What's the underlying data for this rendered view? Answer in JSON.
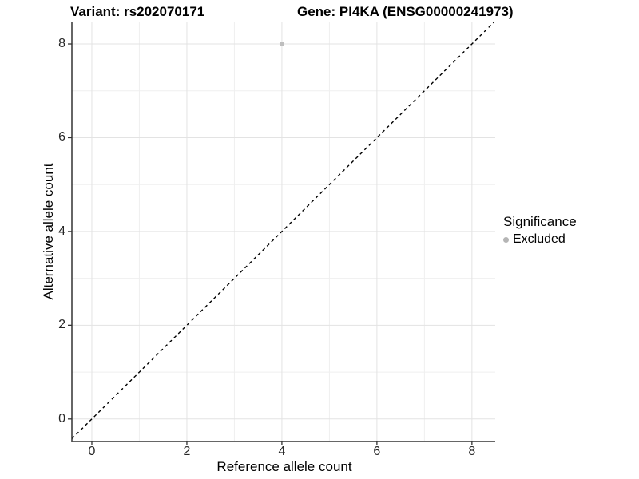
{
  "chart_data": {
    "type": "scatter",
    "titles": {
      "left": "Variant: rs202070171",
      "right": "Gene: PI4KA (ENSG00000241973)"
    },
    "xlabel": "Reference allele count",
    "ylabel": "Alternative allele count",
    "xlim": [
      -0.42,
      8.49
    ],
    "ylim": [
      -0.48,
      8.46
    ],
    "xticks": [
      0,
      2,
      4,
      6,
      8
    ],
    "yticks": [
      0,
      2,
      4,
      6,
      8
    ],
    "xminor": [
      1,
      3,
      5,
      7
    ],
    "yminor": [
      1,
      3,
      5,
      7
    ],
    "grid": true,
    "points": [
      {
        "x": 4,
        "y": 8,
        "series": "Excluded"
      }
    ],
    "identity_line": {
      "equation": "y = x",
      "style": "dashed",
      "color": "#000000"
    },
    "legend": {
      "title": "Significance",
      "position": "right",
      "entries": [
        {
          "label": "Excluded",
          "color": "#b5b5b5"
        }
      ]
    },
    "colors": {
      "point": "#bebebe",
      "grid_major": "#e3e3e3",
      "grid_minor": "#efefef",
      "axis": "#333333",
      "tick_text": "#262626",
      "background": "#ffffff"
    }
  }
}
